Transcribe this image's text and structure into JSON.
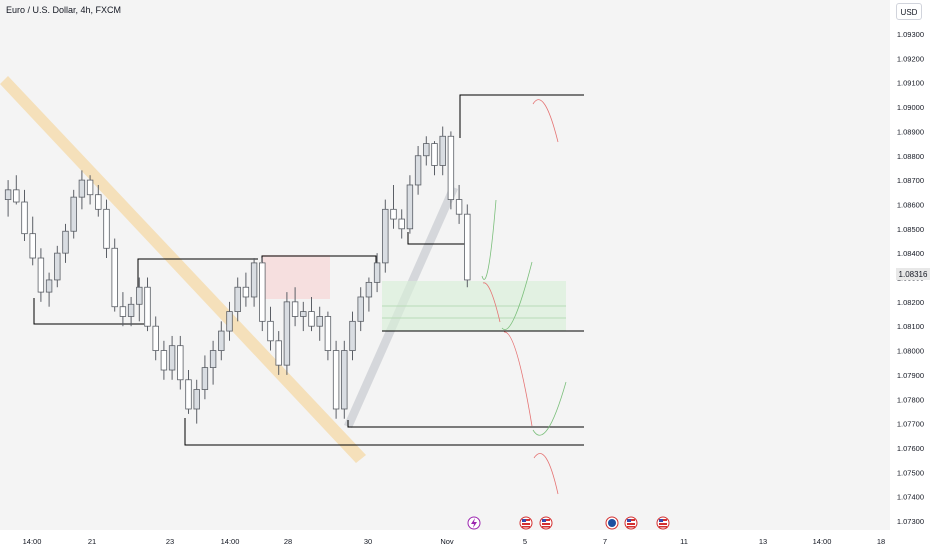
{
  "header": {
    "title": "Euro / U.S. Dollar, 4h, FXCM",
    "currency": "USD"
  },
  "price_axis": {
    "labels": [
      "1.09300",
      "1.09200",
      "1.09100",
      "1.09000",
      "1.08900",
      "1.08800",
      "1.08700",
      "1.08600",
      "1.08500",
      "1.08400",
      "1.08300",
      "1.08200",
      "1.08100",
      "1.08000",
      "1.07900",
      "1.07800",
      "1.07700",
      "1.07600",
      "1.07500",
      "1.07400",
      "1.07300"
    ],
    "last_price": "1.08316"
  },
  "time_axis": {
    "labels": [
      "14:00",
      "21",
      "23",
      "14:00",
      "28",
      "30",
      "Nov",
      "5",
      "7",
      "11",
      "13",
      "14:00",
      "18"
    ]
  },
  "colors": {
    "background": "#f4f4f4",
    "bull": "#d9dde2",
    "bear": "#ffffff",
    "trendline": "#f6cf8a",
    "channel": "#c8cbd0",
    "level": "#000000",
    "demand_zone": "#d9efd9",
    "supply_zone": "#f7d6d6",
    "up_arrow": "#7bbf7b",
    "down_arrow": "#e57373",
    "last_price_bg": "#e8e8e8"
  },
  "event_icons": [
    "lightning-icon",
    "us-flag-icon",
    "us-flag-icon",
    "globe-icon",
    "us-flag-icon",
    "us-flag-icon"
  ],
  "chart_data": {
    "type": "candlestick",
    "title": "Euro / U.S. Dollar, 4h, FXCM",
    "symbol": "EURUSD",
    "timeframe": "4h",
    "ylim": [
      1.073,
      1.093
    ],
    "last_price": 1.08316,
    "candles": [
      [
        1.0862,
        1.087,
        1.0855,
        1.0866
      ],
      [
        1.0866,
        1.0872,
        1.086,
        1.0861
      ],
      [
        1.0861,
        1.0866,
        1.0845,
        1.0848
      ],
      [
        1.0848,
        1.0855,
        1.0835,
        1.0838
      ],
      [
        1.0838,
        1.0842,
        1.082,
        1.0824
      ],
      [
        1.0824,
        1.0832,
        1.0818,
        1.0829
      ],
      [
        1.0829,
        1.0843,
        1.0826,
        1.084
      ],
      [
        1.084,
        1.0852,
        1.0836,
        1.0849
      ],
      [
        1.0849,
        1.0866,
        1.0846,
        1.0863
      ],
      [
        1.0863,
        1.0874,
        1.0858,
        1.087
      ],
      [
        1.087,
        1.0872,
        1.086,
        1.0864
      ],
      [
        1.0864,
        1.0868,
        1.0855,
        1.0858
      ],
      [
        1.0858,
        1.0862,
        1.0838,
        1.0842
      ],
      [
        1.0842,
        1.0846,
        1.0816,
        1.0818
      ],
      [
        1.0818,
        1.0824,
        1.081,
        1.0814
      ],
      [
        1.0814,
        1.0822,
        1.081,
        1.0819
      ],
      [
        1.0819,
        1.083,
        1.0812,
        1.0826
      ],
      [
        1.0826,
        1.083,
        1.0808,
        1.081
      ],
      [
        1.081,
        1.0814,
        1.0796,
        1.08
      ],
      [
        1.08,
        1.0804,
        1.0788,
        1.0792
      ],
      [
        1.0792,
        1.0806,
        1.0788,
        1.0802
      ],
      [
        1.0802,
        1.0806,
        1.0784,
        1.0788
      ],
      [
        1.0788,
        1.0792,
        1.0774,
        1.0776
      ],
      [
        1.0776,
        1.0788,
        1.077,
        1.0784
      ],
      [
        1.0784,
        1.0798,
        1.078,
        1.0793
      ],
      [
        1.0793,
        1.0804,
        1.0786,
        1.08
      ],
      [
        1.08,
        1.0812,
        1.0796,
        1.0808
      ],
      [
        1.0808,
        1.082,
        1.0804,
        1.0816
      ],
      [
        1.0816,
        1.083,
        1.0812,
        1.0826
      ],
      [
        1.0826,
        1.0832,
        1.0818,
        1.0822
      ],
      [
        1.0822,
        1.0838,
        1.0818,
        1.0836
      ],
      [
        1.0836,
        1.0838,
        1.0808,
        1.0812
      ],
      [
        1.0812,
        1.0818,
        1.08,
        1.0804
      ],
      [
        1.0804,
        1.0808,
        1.079,
        1.0794
      ],
      [
        1.0794,
        1.0824,
        1.079,
        1.082
      ],
      [
        1.082,
        1.0826,
        1.081,
        1.0814
      ],
      [
        1.0814,
        1.082,
        1.0808,
        1.0816
      ],
      [
        1.0816,
        1.0822,
        1.0808,
        1.081
      ],
      [
        1.081,
        1.0818,
        1.0804,
        1.0814
      ],
      [
        1.0814,
        1.0816,
        1.0796,
        1.08
      ],
      [
        1.08,
        1.0804,
        1.0772,
        1.0776
      ],
      [
        1.0776,
        1.0804,
        1.0772,
        1.08
      ],
      [
        1.08,
        1.0816,
        1.0796,
        1.0812
      ],
      [
        1.0812,
        1.0826,
        1.0808,
        1.0822
      ],
      [
        1.0822,
        1.083,
        1.0816,
        1.0828
      ],
      [
        1.0828,
        1.084,
        1.0824,
        1.0836
      ],
      [
        1.0836,
        1.0862,
        1.0832,
        1.0858
      ],
      [
        1.0858,
        1.0868,
        1.085,
        1.0854
      ],
      [
        1.0854,
        1.0858,
        1.0846,
        1.085
      ],
      [
        1.085,
        1.0872,
        1.0848,
        1.0868
      ],
      [
        1.0868,
        1.0884,
        1.0864,
        1.088
      ],
      [
        1.088,
        1.0888,
        1.0876,
        1.0885
      ],
      [
        1.0885,
        1.0886,
        1.0872,
        1.0876
      ],
      [
        1.0876,
        1.0892,
        1.0872,
        1.0888
      ],
      [
        1.0888,
        1.089,
        1.0858,
        1.0862
      ],
      [
        1.0862,
        1.0868,
        1.0852,
        1.0856
      ],
      [
        1.0856,
        1.086,
        1.0826,
        1.0829
      ]
    ],
    "horizontal_levels": [
      1.0905,
      1.0845,
      1.0839,
      1.0811,
      1.0807,
      1.0769,
      1.0762
    ],
    "zones": [
      {
        "kind": "demand",
        "top": 1.083,
        "bottom": 1.0808
      },
      {
        "kind": "supply",
        "top": 1.0838,
        "bottom": 1.0821
      }
    ],
    "projection_arrows": [
      "down",
      "up",
      "up",
      "down",
      "up",
      "down",
      "down"
    ]
  }
}
